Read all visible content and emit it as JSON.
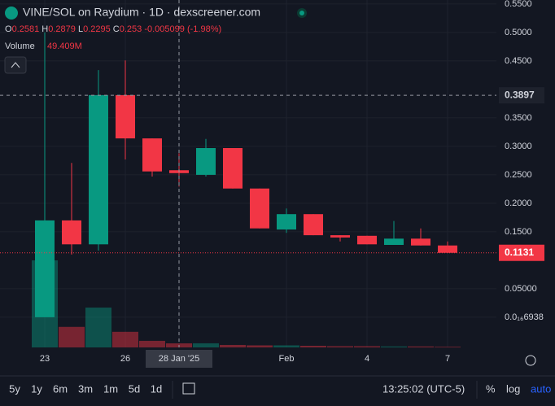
{
  "header": {
    "title": "VINE/SOL on Raydium · 1D · dexscreener.com",
    "readout_labels": [
      "O",
      "H",
      "L",
      "C"
    ],
    "volume_label": "Volume"
  },
  "chart_data": {
    "type": "candlestick",
    "categories": [
      "23",
      null,
      null,
      "26",
      null,
      "28 Jan '25",
      null,
      null,
      null,
      "Feb",
      null,
      null,
      "4",
      null,
      null,
      "7"
    ],
    "open": [
      0.0,
      0.17,
      0.128,
      0.39,
      0.314,
      0.2581,
      0.25,
      0.297,
      0.226,
      0.154,
      0.181,
      0.144,
      0.143,
      0.127,
      0.138,
      0.126
    ],
    "high": [
      0.5,
      0.271,
      0.434,
      0.451,
      0.314,
      0.2879,
      0.313,
      0.297,
      0.226,
      0.191,
      0.181,
      0.144,
      0.143,
      0.169,
      0.156,
      0.133
    ],
    "low": [
      0.0,
      0.11,
      0.117,
      0.277,
      0.247,
      0.2295,
      0.247,
      0.226,
      0.156,
      0.148,
      0.144,
      0.133,
      0.128,
      0.127,
      0.126,
      0.1131
    ],
    "close": [
      0.17,
      0.128,
      0.39,
      0.314,
      0.256,
      0.253,
      0.297,
      0.226,
      0.156,
      0.181,
      0.144,
      0.14,
      0.128,
      0.138,
      0.126,
      0.1131
    ],
    "up_color": "#089981",
    "down_color": "#f23645",
    "ylim": [
      -0.053,
      0.557
    ],
    "yticks": [
      {
        "value": 0.55,
        "label": "0.5500"
      },
      {
        "value": 0.5,
        "label": "0.5000"
      },
      {
        "value": 0.45,
        "label": "0.4500"
      },
      {
        "value": 0.35,
        "label": "0.3500"
      },
      {
        "value": 0.3,
        "label": "0.3000"
      },
      {
        "value": 0.25,
        "label": "0.2500"
      },
      {
        "value": 0.2,
        "label": "0.2000"
      },
      {
        "value": 0.15,
        "label": "0.1500"
      },
      {
        "value": 0.05,
        "label": "0.05000"
      },
      {
        "value": 6.938e-17,
        "label": "0.0₁₆6938"
      }
    ],
    "grid": true,
    "crosshair_index": 5,
    "crosshair_price": 0.3897,
    "change": -0.005099,
    "change_pct": {
      "value": -1.98,
      "label": "(-1.98%)"
    },
    "volume": [
      1060,
      250,
      485,
      190,
      80,
      49.409,
      50,
      30,
      25,
      25,
      20,
      15,
      15,
      12,
      12,
      8
    ],
    "volume_value_label": "49.409M",
    "volume_ylim": [
      0,
      4230
    ]
  },
  "toolbar": {
    "ranges": [
      "5y",
      "1y",
      "6m",
      "3m",
      "1m",
      "5d",
      "1d"
    ],
    "time": "13:25:02 (UTC-5)",
    "options": [
      "%",
      "log",
      "auto"
    ]
  }
}
